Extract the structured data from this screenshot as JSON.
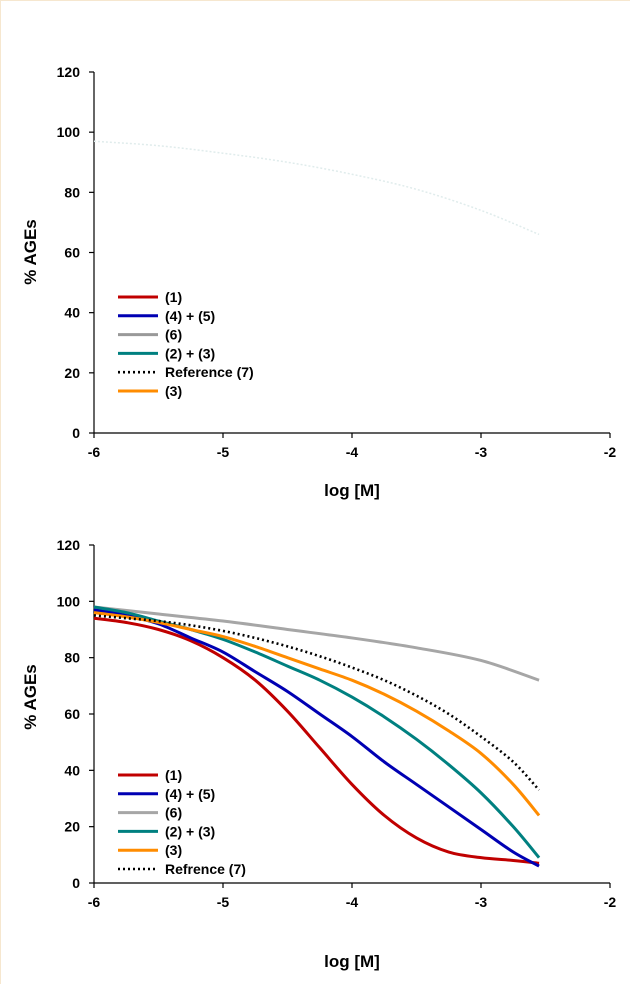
{
  "chart_data": [
    {
      "type": "line",
      "title": "",
      "xlabel": "log [M]",
      "ylabel": "% AGEs",
      "xlim": [
        -6,
        -2
      ],
      "ylim": [
        0,
        120
      ],
      "x_ticks": [
        "-6",
        "-5",
        "-4",
        "-3",
        "-2"
      ],
      "y_ticks": [
        "0",
        "20",
        "40",
        "60",
        "80",
        "100",
        "120"
      ],
      "legend_position": "bottom-left",
      "series": [
        {
          "name": "(1)",
          "color": "#c00000",
          "x": [],
          "y": []
        },
        {
          "name": "(4) + (5)",
          "color": "#0000b3",
          "x": [],
          "y": []
        },
        {
          "name": "(6)",
          "color": "#999999",
          "x": [],
          "y": []
        },
        {
          "name": "(2) + (3)",
          "color": "#008080",
          "x": [],
          "y": []
        },
        {
          "name": "Reference (7)",
          "color": "#000000",
          "dashed": true,
          "x": [],
          "y": []
        },
        {
          "name": "(3)",
          "color": "#ff8c00",
          "x": [],
          "y": []
        }
      ],
      "faint_curve": {
        "color": "#e0ecec",
        "x": [
          -6.0,
          -5.5,
          -5.0,
          -4.5,
          -4.0,
          -3.5,
          -3.0,
          -2.55
        ],
        "y": [
          97,
          95.5,
          93,
          90,
          86,
          81,
          74,
          66
        ]
      }
    },
    {
      "type": "line",
      "title": "",
      "xlabel": "log [M]",
      "ylabel": "% AGEs",
      "xlim": [
        -6,
        -2
      ],
      "ylim": [
        0,
        120
      ],
      "x_ticks": [
        "-6",
        "-5",
        "-4",
        "-3",
        "-2"
      ],
      "y_ticks": [
        "0",
        "20",
        "40",
        "60",
        "80",
        "100",
        "120"
      ],
      "legend_position": "bottom-left",
      "series": [
        {
          "name": "(1)",
          "color": "#c00000",
          "x": [
            -6.0,
            -5.75,
            -5.5,
            -5.25,
            -5.0,
            -4.75,
            -4.5,
            -4.25,
            -4.0,
            -3.75,
            -3.5,
            -3.25,
            -3.0,
            -2.75,
            -2.55
          ],
          "y": [
            94,
            92.5,
            90,
            86,
            80,
            72,
            61,
            48,
            35,
            24,
            16,
            11,
            9,
            8,
            7
          ]
        },
        {
          "name": "(4) + (5)",
          "color": "#0000b3",
          "x": [
            -6.0,
            -5.75,
            -5.5,
            -5.25,
            -5.0,
            -4.75,
            -4.5,
            -4.25,
            -4.0,
            -3.75,
            -3.5,
            -3.25,
            -3.0,
            -2.75,
            -2.55
          ],
          "y": [
            97,
            95,
            92,
            87,
            82,
            75,
            68,
            60,
            52,
            43,
            35,
            27,
            19,
            11,
            6
          ]
        },
        {
          "name": "(6)",
          "color": "#a6a6a6",
          "x": [
            -6.0,
            -5.5,
            -5.0,
            -4.5,
            -4.0,
            -3.5,
            -3.0,
            -2.55
          ],
          "y": [
            98,
            95.5,
            93,
            90,
            87,
            83.5,
            79,
            72
          ]
        },
        {
          "name": "(2) + (3)",
          "color": "#008080",
          "x": [
            -6.0,
            -5.75,
            -5.5,
            -5.25,
            -5.0,
            -4.75,
            -4.5,
            -4.25,
            -4.0,
            -3.75,
            -3.5,
            -3.25,
            -3.0,
            -2.75,
            -2.55
          ],
          "y": [
            98,
            96,
            93,
            90,
            86.5,
            82,
            77,
            72,
            66,
            59,
            51,
            42,
            32,
            20,
            9
          ]
        },
        {
          "name": "(3)",
          "color": "#ff8c00",
          "x": [
            -6.0,
            -5.75,
            -5.5,
            -5.25,
            -5.0,
            -4.75,
            -4.5,
            -4.25,
            -4.0,
            -3.75,
            -3.5,
            -3.25,
            -3.0,
            -2.75,
            -2.55
          ],
          "y": [
            96,
            94.5,
            92.5,
            90,
            87.5,
            84,
            80,
            76,
            72,
            67,
            61,
            54,
            46,
            35,
            24
          ]
        },
        {
          "name": "Refrence (7)",
          "color": "#000000",
          "dashed": true,
          "x": [
            -6.0,
            -5.75,
            -5.5,
            -5.25,
            -5.0,
            -4.75,
            -4.5,
            -4.25,
            -4.0,
            -3.75,
            -3.5,
            -3.25,
            -3.0,
            -2.75,
            -2.55
          ],
          "y": [
            95,
            94,
            93,
            91.5,
            89.5,
            87,
            84,
            80.5,
            76.5,
            72,
            66.5,
            60,
            52,
            43,
            33
          ]
        }
      ]
    }
  ]
}
